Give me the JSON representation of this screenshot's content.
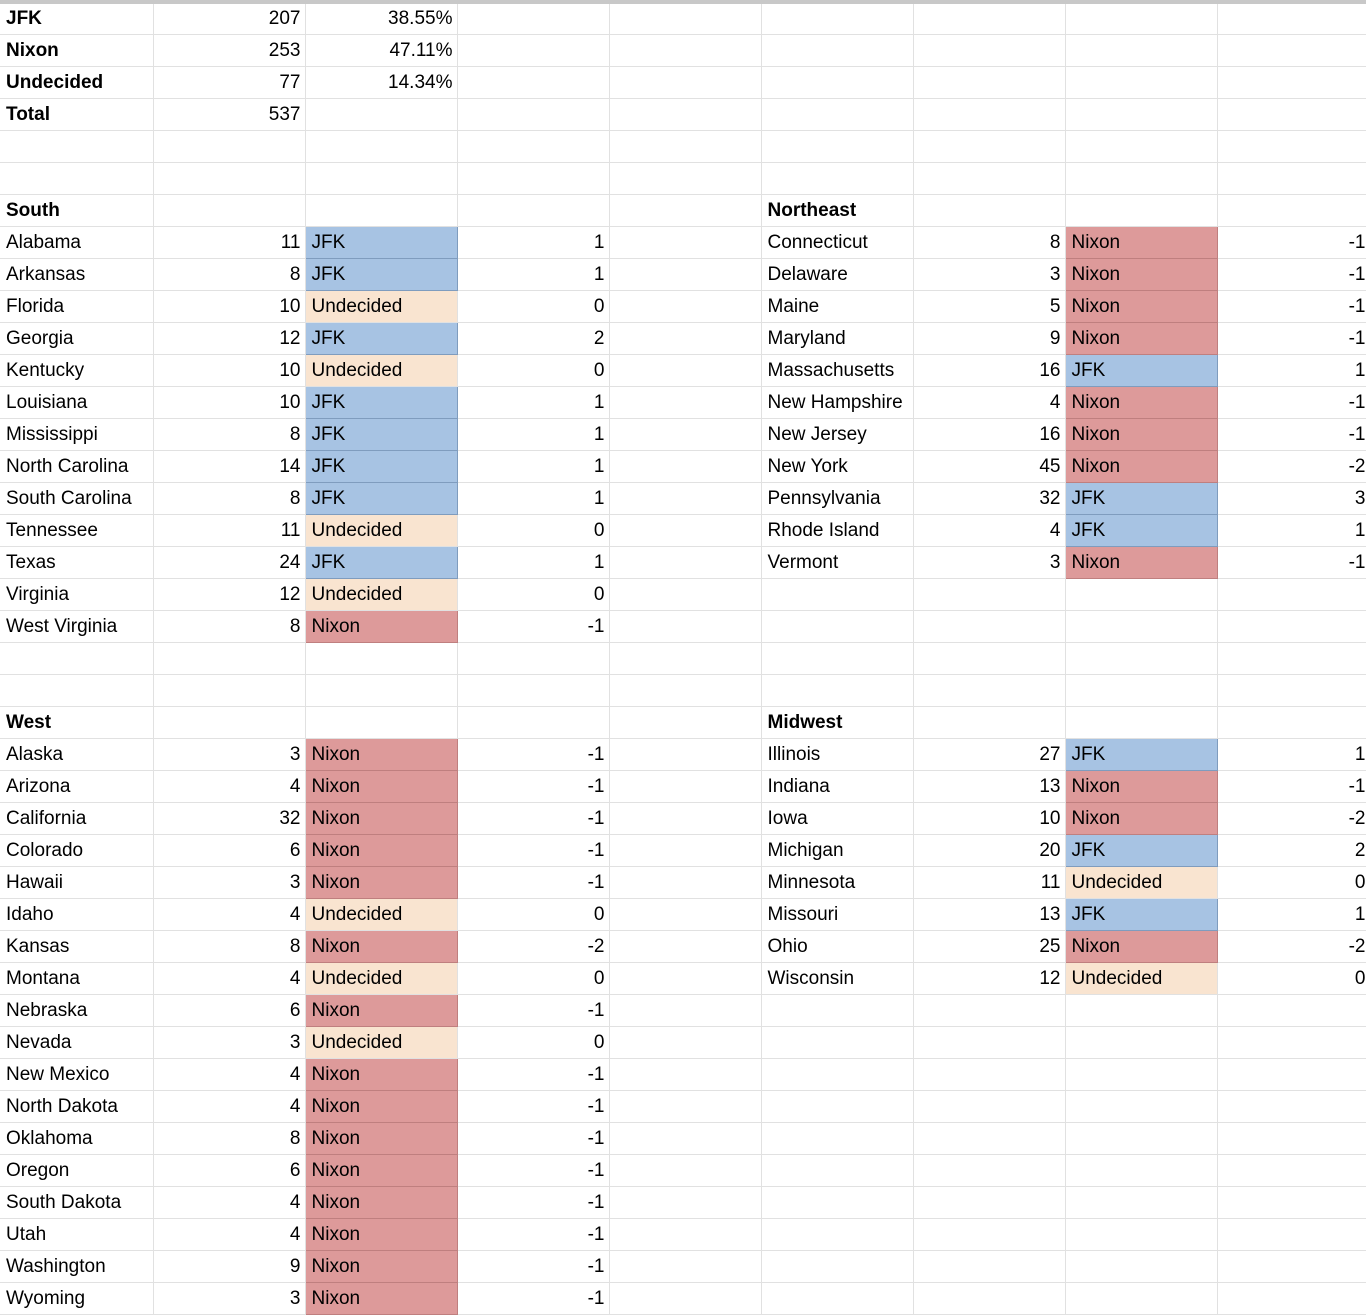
{
  "summary": [
    {
      "label": "JFK",
      "votes": "207",
      "pct": "38.55%"
    },
    {
      "label": "Nixon",
      "votes": "253",
      "pct": "47.11%"
    },
    {
      "label": "Undecided",
      "votes": "77",
      "pct": "14.34%"
    },
    {
      "label": "Total",
      "votes": "537",
      "pct": ""
    }
  ],
  "regions": {
    "south": {
      "title": "South",
      "states": [
        {
          "name": "Alabama",
          "ev": "11",
          "lean": "JFK",
          "score": "1"
        },
        {
          "name": "Arkansas",
          "ev": "8",
          "lean": "JFK",
          "score": "1"
        },
        {
          "name": "Florida",
          "ev": "10",
          "lean": "Undecided",
          "score": "0"
        },
        {
          "name": "Georgia",
          "ev": "12",
          "lean": "JFK",
          "score": "2"
        },
        {
          "name": "Kentucky",
          "ev": "10",
          "lean": "Undecided",
          "score": "0"
        },
        {
          "name": "Louisiana",
          "ev": "10",
          "lean": "JFK",
          "score": "1"
        },
        {
          "name": "Mississippi",
          "ev": "8",
          "lean": "JFK",
          "score": "1"
        },
        {
          "name": "North Carolina",
          "ev": "14",
          "lean": "JFK",
          "score": "1"
        },
        {
          "name": "South Carolina",
          "ev": "8",
          "lean": "JFK",
          "score": "1"
        },
        {
          "name": "Tennessee",
          "ev": "11",
          "lean": "Undecided",
          "score": "0"
        },
        {
          "name": "Texas",
          "ev": "24",
          "lean": "JFK",
          "score": "1"
        },
        {
          "name": "Virginia",
          "ev": "12",
          "lean": "Undecided",
          "score": "0"
        },
        {
          "name": "West Virginia",
          "ev": "8",
          "lean": "Nixon",
          "score": "-1"
        }
      ]
    },
    "northeast": {
      "title": "Northeast",
      "states": [
        {
          "name": "Connecticut",
          "ev": "8",
          "lean": "Nixon",
          "score": "-1"
        },
        {
          "name": "Delaware",
          "ev": "3",
          "lean": "Nixon",
          "score": "-1"
        },
        {
          "name": "Maine",
          "ev": "5",
          "lean": "Nixon",
          "score": "-1"
        },
        {
          "name": "Maryland",
          "ev": "9",
          "lean": "Nixon",
          "score": "-1"
        },
        {
          "name": "Massachusetts",
          "ev": "16",
          "lean": "JFK",
          "score": "1"
        },
        {
          "name": "New Hampshire",
          "ev": "4",
          "lean": "Nixon",
          "score": "-1"
        },
        {
          "name": "New Jersey",
          "ev": "16",
          "lean": "Nixon",
          "score": "-1"
        },
        {
          "name": "New York",
          "ev": "45",
          "lean": "Nixon",
          "score": "-2"
        },
        {
          "name": "Pennsylvania",
          "ev": "32",
          "lean": "JFK",
          "score": "3"
        },
        {
          "name": "Rhode Island",
          "ev": "4",
          "lean": "JFK",
          "score": "1"
        },
        {
          "name": "Vermont",
          "ev": "3",
          "lean": "Nixon",
          "score": "-1"
        }
      ]
    },
    "west": {
      "title": "West",
      "states": [
        {
          "name": "Alaska",
          "ev": "3",
          "lean": "Nixon",
          "score": "-1"
        },
        {
          "name": "Arizona",
          "ev": "4",
          "lean": "Nixon",
          "score": "-1"
        },
        {
          "name": "California",
          "ev": "32",
          "lean": "Nixon",
          "score": "-1"
        },
        {
          "name": "Colorado",
          "ev": "6",
          "lean": "Nixon",
          "score": "-1"
        },
        {
          "name": "Hawaii",
          "ev": "3",
          "lean": "Nixon",
          "score": "-1"
        },
        {
          "name": "Idaho",
          "ev": "4",
          "lean": "Undecided",
          "score": "0"
        },
        {
          "name": "Kansas",
          "ev": "8",
          "lean": "Nixon",
          "score": "-2"
        },
        {
          "name": "Montana",
          "ev": "4",
          "lean": "Undecided",
          "score": "0"
        },
        {
          "name": "Nebraska",
          "ev": "6",
          "lean": "Nixon",
          "score": "-1"
        },
        {
          "name": "Nevada",
          "ev": "3",
          "lean": "Undecided",
          "score": "0"
        },
        {
          "name": "New Mexico",
          "ev": "4",
          "lean": "Nixon",
          "score": "-1"
        },
        {
          "name": "North Dakota",
          "ev": "4",
          "lean": "Nixon",
          "score": "-1"
        },
        {
          "name": "Oklahoma",
          "ev": "8",
          "lean": "Nixon",
          "score": "-1"
        },
        {
          "name": "Oregon",
          "ev": "6",
          "lean": "Nixon",
          "score": "-1"
        },
        {
          "name": "South Dakota",
          "ev": "4",
          "lean": "Nixon",
          "score": "-1"
        },
        {
          "name": "Utah",
          "ev": "4",
          "lean": "Nixon",
          "score": "-1"
        },
        {
          "name": "Washington",
          "ev": "9",
          "lean": "Nixon",
          "score": "-1"
        },
        {
          "name": "Wyoming",
          "ev": "3",
          "lean": "Nixon",
          "score": "-1"
        }
      ]
    },
    "midwest": {
      "title": "Midwest",
      "states": [
        {
          "name": "Illinois",
          "ev": "27",
          "lean": "JFK",
          "score": "1"
        },
        {
          "name": "Indiana",
          "ev": "13",
          "lean": "Nixon",
          "score": "-1"
        },
        {
          "name": "Iowa",
          "ev": "10",
          "lean": "Nixon",
          "score": "-2"
        },
        {
          "name": "Michigan",
          "ev": "20",
          "lean": "JFK",
          "score": "2"
        },
        {
          "name": "Minnesota",
          "ev": "11",
          "lean": "Undecided",
          "score": "0"
        },
        {
          "name": "Missouri",
          "ev": "13",
          "lean": "JFK",
          "score": "1"
        },
        {
          "name": "Ohio",
          "ev": "25",
          "lean": "Nixon",
          "score": "-2"
        },
        {
          "name": "Wisconsin",
          "ev": "12",
          "lean": "Undecided",
          "score": "0"
        }
      ]
    }
  },
  "colors": {
    "JFK": "#a7c3e3",
    "Nixon": "#dd9a9a",
    "Undecided": "#f9e4d0"
  }
}
